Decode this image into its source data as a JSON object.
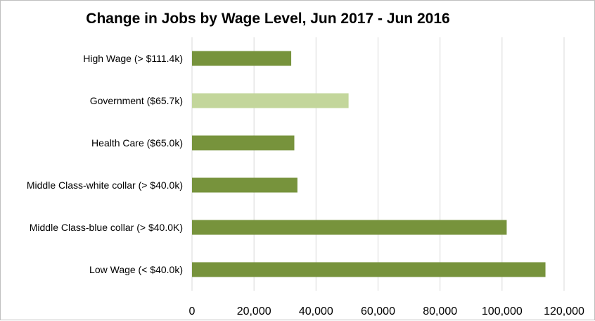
{
  "chart_data": {
    "type": "bar",
    "orientation": "horizontal",
    "title": "Change in Jobs by Wage Level, Jun 2017 - Jun 2016",
    "xlabel": "",
    "ylabel": "",
    "categories": [
      "High Wage (> $111.4k)",
      "Government ($65.7k)",
      "Health Care ($65.0k)",
      "Middle Class-white collar (> $40.0k)",
      "Middle Class-blue collar (> $40.0K)",
      "Low Wage (< $40.0k)"
    ],
    "values": [
      32000,
      50500,
      33000,
      34000,
      101500,
      114000
    ],
    "bar_colors": [
      "#77933c",
      "#c3d69b",
      "#77933c",
      "#77933c",
      "#77933c",
      "#77933c"
    ],
    "xlim": [
      0,
      120000
    ],
    "xticks": [
      0,
      20000,
      40000,
      60000,
      80000,
      100000,
      120000
    ],
    "xtick_labels": [
      "0",
      "20,000",
      "40,000",
      "60,000",
      "80,000",
      "100,000",
      "120,000"
    ],
    "grid": true,
    "legend": "none"
  }
}
